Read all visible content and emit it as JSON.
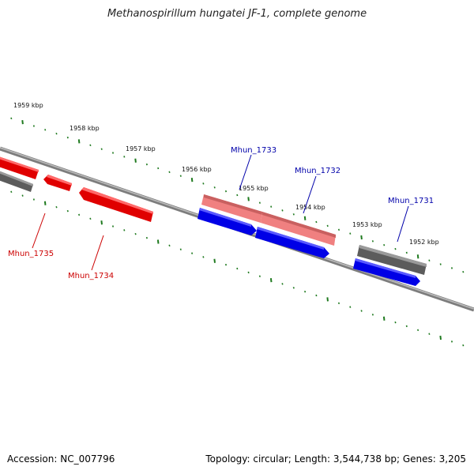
{
  "title": "Methanospirillum hungatei JF-1, complete genome",
  "footer": {
    "accession": "Accession: NC_007796",
    "summary": "Topology: circular; Length: 3,544,738 bp; Genes: 3,205"
  },
  "colors": {
    "backbone": "#8a8a8a",
    "tick": "#1f7a1f",
    "forward_cds": "#0000ee",
    "forward_rna": "#f08080",
    "reverse_cds": "#ee0000",
    "other": "#666666",
    "label_forward": "#0000aa",
    "label_reverse": "#cc0000"
  },
  "scale": {
    "kbp_labels": [
      "1959 kbp",
      "1958 kbp",
      "1957 kbp",
      "1956 kbp",
      "1955 kbp",
      "1954 kbp",
      "1953 kbp",
      "1952 kbp"
    ]
  },
  "genes": [
    {
      "name": "Mhun_1733",
      "strand": "forward"
    },
    {
      "name": "Mhun_1732",
      "strand": "forward"
    },
    {
      "name": "Mhun_1731",
      "strand": "forward"
    },
    {
      "name": "Mhun_1735",
      "strand": "reverse"
    },
    {
      "name": "Mhun_1734",
      "strand": "reverse"
    }
  ]
}
